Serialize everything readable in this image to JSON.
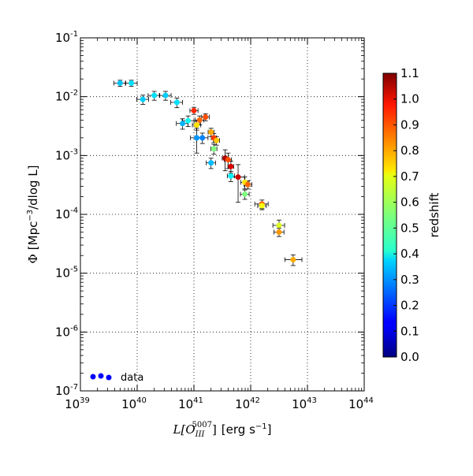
{
  "chart_data": {
    "type": "scatter",
    "title": "",
    "x_scale": "log",
    "y_scale": "log",
    "xlim": [
      1e+39,
      1e+44
    ],
    "ylim": [
      1e-07,
      0.1
    ],
    "grid": true,
    "x_tick_exponents": [
      39,
      40,
      41,
      42,
      43,
      44
    ],
    "y_tick_exponents": [
      -7,
      -6,
      -5,
      -4,
      -3,
      -2,
      -1
    ],
    "x_tick_base": "10",
    "y_tick_base": "10",
    "xlabel_math": "L[O",
    "xlabel_sub": "III",
    "xlabel_sup": "5007",
    "xlabel_close": "]",
    "xlabel_units": "[erg s",
    "xlabel_units_sup": "−1",
    "xlabel_units_close": "]",
    "ylabel_symbol": "Φ",
    "ylabel_units": "[Mpc",
    "ylabel_units_sup": "−3",
    "ylabel_units_close": "/dlog L]",
    "legend": {
      "label": "data",
      "position": "lower-left",
      "color": "#0000ff"
    },
    "colorbar": {
      "label": "redshift",
      "range": [
        0.0,
        1.1
      ],
      "tick_values": [
        0.0,
        0.1,
        0.2,
        0.3,
        0.4,
        0.5,
        0.6,
        0.7,
        0.8,
        0.9,
        1.0,
        1.1
      ],
      "tick_labels": [
        "0.0",
        "0.1",
        "0.2",
        "0.3",
        "0.4",
        "0.5",
        "0.6",
        "0.7",
        "0.8",
        "0.9",
        "1.0",
        "1.1"
      ],
      "colormap": "jet"
    },
    "points": [
      {
        "x": 5e+39,
        "y": 0.017,
        "z": 0.35,
        "dx": [
          1.1e+39,
          1.3e+39
        ],
        "dy": [
          0.002,
          0.002
        ]
      },
      {
        "x": 7.9e+39,
        "y": 0.017,
        "z": 0.38,
        "dx": [
          1.7e+39,
          2.1e+39
        ],
        "dy": [
          0.002,
          0.002
        ]
      },
      {
        "x": 1.26e+40,
        "y": 0.009,
        "z": 0.36,
        "dx": [
          2.8e+39,
          3.3e+39
        ],
        "dy": [
          0.0016,
          0.0016
        ]
      },
      {
        "x": 2e+40,
        "y": 0.0105,
        "z": 0.38,
        "dx": [
          4.4e+39,
          5e+39
        ],
        "dy": [
          0.0018,
          0.0018
        ]
      },
      {
        "x": 3.16e+40,
        "y": 0.0105,
        "z": 0.36,
        "dx": [
          7e+39,
          8e+39
        ],
        "dy": [
          0.0018,
          0.0018
        ]
      },
      {
        "x": 5e+40,
        "y": 0.008,
        "z": 0.38,
        "dx": [
          1.1e+40,
          1.3e+40
        ],
        "dy": [
          0.0015,
          0.0015
        ]
      },
      {
        "x": 6.3e+40,
        "y": 0.0035,
        "z": 0.33,
        "dx": [
          1.4e+40,
          1.6e+40
        ],
        "dy": [
          0.0007,
          0.0007
        ]
      },
      {
        "x": 7.9e+40,
        "y": 0.0039,
        "z": 0.42,
        "dx": [
          1.7e+40,
          2.1e+40
        ],
        "dy": [
          0.0008,
          0.0008
        ]
      },
      {
        "x": 1e+41,
        "y": 0.0058,
        "z": 0.92,
        "dx": [
          1.5e+40,
          1.8e+40
        ],
        "dy": [
          0.0008,
          0.0008
        ]
      },
      {
        "x": 1.12e+41,
        "y": 0.0033,
        "z": 0.72,
        "dx": [
          1.8e+40,
          2e+40
        ],
        "dy": [
          0.0006,
          0.0006
        ]
      },
      {
        "x": 1.26e+41,
        "y": 0.004,
        "z": 0.85,
        "dx": [
          2e+40,
          2.3e+40
        ],
        "dy": [
          0.0007,
          0.0007
        ]
      },
      {
        "x": 1.12e+41,
        "y": 0.002,
        "z": 0.3,
        "dx": [
          2.5e+40,
          3e+40
        ],
        "dy": [
          0.0009,
          0.0009
        ]
      },
      {
        "x": 1.41e+41,
        "y": 0.002,
        "z": 0.28,
        "dx": [
          3.2e+40,
          3.6e+40
        ],
        "dy": [
          0.0004,
          0.0004
        ]
      },
      {
        "x": 1.6e+41,
        "y": 0.0045,
        "z": 0.88,
        "dx": [
          2.3e+40,
          2.6e+40
        ],
        "dy": [
          0.0006,
          0.0006
        ]
      },
      {
        "x": 2e+41,
        "y": 0.00075,
        "z": 0.34,
        "dx": [
          3.5e+40,
          4e+40
        ],
        "dy": [
          0.00015,
          0.00015
        ]
      },
      {
        "x": 2e+41,
        "y": 0.0025,
        "z": 0.78,
        "dx": [
          2.2e+40,
          2.5e+40
        ],
        "dy": [
          0.0004,
          0.0004
        ]
      },
      {
        "x": 2.24e+41,
        "y": 0.002,
        "z": 0.9,
        "dx": [
          2.2e+40,
          2.6e+40
        ],
        "dy": [
          0.00035,
          0.00035
        ]
      },
      {
        "x": 2.24e+41,
        "y": 0.0013,
        "z": 0.55,
        "dx": [
          2.6e+40,
          3e+40
        ],
        "dy": [
          0.00025,
          0.00025
        ]
      },
      {
        "x": 2.5e+41,
        "y": 0.0018,
        "z": 0.75,
        "dx": [
          2.8e+40,
          3.2e+40
        ],
        "dy": [
          0.0003,
          0.0003
        ]
      },
      {
        "x": 3.55e+41,
        "y": 0.0009,
        "z": 1.05,
        "dx": [
          4e+40,
          4.5e+40
        ],
        "dy": [
          0.00035,
          0.00035
        ]
      },
      {
        "x": 4e+41,
        "y": 0.00085,
        "z": 0.88,
        "dx": [
          5.5e+40,
          6e+40
        ],
        "dy": [
          0.00025,
          0.00025
        ]
      },
      {
        "x": 4.47e+41,
        "y": 0.00065,
        "z": 1.0,
        "dx": [
          5e+40,
          5.5e+40
        ],
        "dy": [
          0.00015,
          0.00015
        ]
      },
      {
        "x": 4.47e+41,
        "y": 0.00045,
        "z": 0.4,
        "dx": [
          6e+40,
          7e+40
        ],
        "dy": [
          9e-05,
          9e-05
        ]
      },
      {
        "x": 6e+41,
        "y": 0.00043,
        "z": 1.02,
        "dx": [
          1.5e+41,
          1.8e+41
        ],
        "dy": [
          0.00027,
          0.00027
        ]
      },
      {
        "x": 7.9e+41,
        "y": 0.00035,
        "z": 0.72,
        "dx": [
          1.2e+41,
          1.5e+41
        ],
        "dy": [
          8e-05,
          8e-05
        ]
      },
      {
        "x": 8.9e+41,
        "y": 0.00032,
        "z": 0.85,
        "dx": [
          1.3e+41,
          1.6e+41
        ],
        "dy": [
          5e-05,
          5e-05
        ]
      },
      {
        "x": 7.9e+41,
        "y": 0.00022,
        "z": 0.55,
        "dx": [
          1.3e+41,
          1.5e+41
        ],
        "dy": [
          4e-05,
          4e-05
        ]
      },
      {
        "x": 1.58e+42,
        "y": 0.00015,
        "z": 0.85,
        "dx": [
          4e+41,
          4.5e+41
        ],
        "dy": [
          2.5e-05,
          2.5e-05
        ]
      },
      {
        "x": 1.58e+42,
        "y": 0.00014,
        "z": 0.68,
        "dx": [
          2.5e+41,
          3e+41
        ],
        "dy": [
          2e-05,
          2e-05
        ]
      },
      {
        "x": 3.16e+42,
        "y": 6.5e-05,
        "z": 0.65,
        "dx": [
          7e+41,
          8e+41
        ],
        "dy": [
          1.5e-05,
          1.5e-05
        ]
      },
      {
        "x": 3.16e+42,
        "y": 5e-05,
        "z": 0.8,
        "dx": [
          6e+41,
          7e+41
        ],
        "dy": [
          8e-06,
          8e-06
        ]
      },
      {
        "x": 5.6e+42,
        "y": 1.7e-05,
        "z": 0.78,
        "dx": [
          1.6e+42,
          2.4e+42
        ],
        "dy": [
          3.5e-06,
          3.5e-06
        ]
      }
    ]
  }
}
